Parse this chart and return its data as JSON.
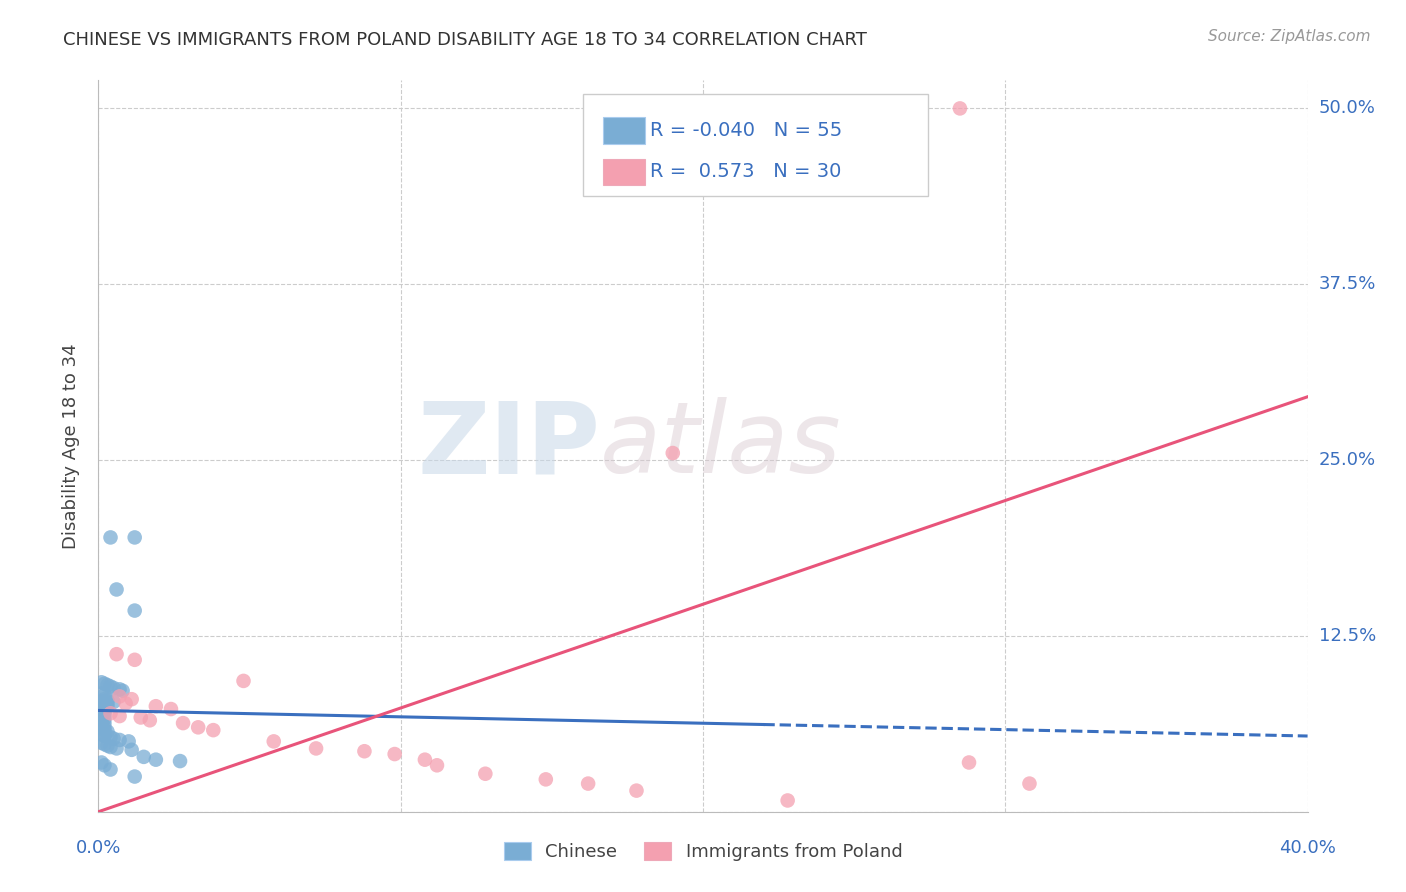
{
  "title": "CHINESE VS IMMIGRANTS FROM POLAND DISABILITY AGE 18 TO 34 CORRELATION CHART",
  "source": "Source: ZipAtlas.com",
  "ylabel": "Disability Age 18 to 34",
  "xlim": [
    0.0,
    0.4
  ],
  "ylim": [
    0.0,
    0.52
  ],
  "x_ticks": [
    0.0,
    0.1,
    0.2,
    0.3,
    0.4
  ],
  "y_ticks": [
    0.0,
    0.125,
    0.25,
    0.375,
    0.5
  ],
  "y_tick_labels": [
    "",
    "12.5%",
    "25.0%",
    "37.5%",
    "50.0%"
  ],
  "x_tick_labels_show": [
    "0.0%",
    "40.0%"
  ],
  "x_tick_vals_show": [
    0.0,
    0.4
  ],
  "grid_color": "#cccccc",
  "background_color": "#ffffff",
  "chinese_color": "#7aadd4",
  "poland_color": "#f4a0b0",
  "chinese_R": -0.04,
  "chinese_N": 55,
  "poland_R": 0.573,
  "poland_N": 30,
  "legend_label_1": "Chinese",
  "legend_label_2": "Immigrants from Poland",
  "chinese_line_color": "#3a6fbf",
  "poland_line_color": "#e8547a",
  "watermark_zip": "ZIP",
  "watermark_atlas": "atlas",
  "chinese_line_x": [
    0.0,
    0.22
  ],
  "chinese_line_y": [
    0.072,
    0.062
  ],
  "poland_line_x": [
    0.0,
    0.4
  ],
  "poland_line_y": [
    0.0,
    0.295
  ],
  "chinese_points": [
    [
      0.004,
      0.195
    ],
    [
      0.012,
      0.195
    ],
    [
      0.006,
      0.158
    ],
    [
      0.012,
      0.143
    ],
    [
      0.001,
      0.092
    ],
    [
      0.002,
      0.091
    ],
    [
      0.003,
      0.09
    ],
    [
      0.004,
      0.089
    ],
    [
      0.005,
      0.088
    ],
    [
      0.007,
      0.087
    ],
    [
      0.008,
      0.086
    ],
    [
      0.001,
      0.084
    ],
    [
      0.002,
      0.083
    ],
    [
      0.002,
      0.08
    ],
    [
      0.003,
      0.079
    ],
    [
      0.001,
      0.078
    ],
    [
      0.003,
      0.077
    ],
    [
      0.003,
      0.075
    ],
    [
      0.001,
      0.074
    ],
    [
      0.001,
      0.072
    ],
    [
      0.002,
      0.071
    ],
    [
      0.001,
      0.07
    ],
    [
      0.002,
      0.069
    ],
    [
      0.001,
      0.067
    ],
    [
      0.002,
      0.066
    ],
    [
      0.001,
      0.064
    ],
    [
      0.002,
      0.063
    ],
    [
      0.001,
      0.061
    ],
    [
      0.002,
      0.06
    ],
    [
      0.001,
      0.059
    ],
    [
      0.002,
      0.058
    ],
    [
      0.003,
      0.057
    ],
    [
      0.001,
      0.055
    ],
    [
      0.002,
      0.054
    ],
    [
      0.004,
      0.053
    ],
    [
      0.005,
      0.052
    ],
    [
      0.007,
      0.051
    ],
    [
      0.01,
      0.05
    ],
    [
      0.001,
      0.049
    ],
    [
      0.002,
      0.048
    ],
    [
      0.003,
      0.047
    ],
    [
      0.004,
      0.046
    ],
    [
      0.006,
      0.045
    ],
    [
      0.011,
      0.044
    ],
    [
      0.015,
      0.039
    ],
    [
      0.019,
      0.037
    ],
    [
      0.027,
      0.036
    ],
    [
      0.001,
      0.068
    ],
    [
      0.001,
      0.066
    ],
    [
      0.002,
      0.075
    ],
    [
      0.005,
      0.078
    ],
    [
      0.012,
      0.025
    ],
    [
      0.001,
      0.035
    ],
    [
      0.002,
      0.033
    ],
    [
      0.004,
      0.03
    ]
  ],
  "poland_points": [
    [
      0.285,
      0.5
    ],
    [
      0.19,
      0.255
    ],
    [
      0.006,
      0.112
    ],
    [
      0.012,
      0.108
    ],
    [
      0.048,
      0.093
    ],
    [
      0.007,
      0.082
    ],
    [
      0.011,
      0.08
    ],
    [
      0.009,
      0.077
    ],
    [
      0.019,
      0.075
    ],
    [
      0.024,
      0.073
    ],
    [
      0.004,
      0.07
    ],
    [
      0.007,
      0.068
    ],
    [
      0.014,
      0.067
    ],
    [
      0.017,
      0.065
    ],
    [
      0.028,
      0.063
    ],
    [
      0.033,
      0.06
    ],
    [
      0.038,
      0.058
    ],
    [
      0.058,
      0.05
    ],
    [
      0.072,
      0.045
    ],
    [
      0.088,
      0.043
    ],
    [
      0.098,
      0.041
    ],
    [
      0.108,
      0.037
    ],
    [
      0.112,
      0.033
    ],
    [
      0.128,
      0.027
    ],
    [
      0.148,
      0.023
    ],
    [
      0.162,
      0.02
    ],
    [
      0.178,
      0.015
    ],
    [
      0.228,
      0.008
    ],
    [
      0.288,
      0.035
    ],
    [
      0.308,
      0.02
    ]
  ]
}
